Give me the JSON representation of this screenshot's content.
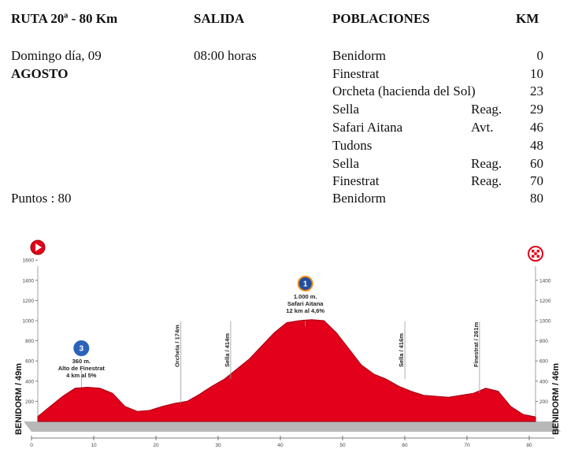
{
  "header": {
    "ruta": "RUTA 20ª - 80 Km",
    "salida": "SALIDA",
    "poblaciones": "POBLACIONES",
    "km": "KM"
  },
  "info": {
    "date_line": "Domingo día, 09",
    "month": "AGOSTO",
    "time": "08:00 horas",
    "points": "Puntos : 80"
  },
  "towns": [
    {
      "name": "Benidorm",
      "tag": "",
      "km": "0"
    },
    {
      "name": "Finestrat",
      "tag": "",
      "km": "10"
    },
    {
      "name": "Orcheta (hacienda del Sol)",
      "tag": "",
      "km": "23"
    },
    {
      "name": "Sella",
      "tag": "Reag.",
      "km": "29"
    },
    {
      "name": "Safari Aitana",
      "tag": "Avt.",
      "km": "46"
    },
    {
      "name": "Tudons",
      "tag": "",
      "km": "48"
    },
    {
      "name": "Sella",
      "tag": "Reag.",
      "km": "60"
    },
    {
      "name": "Finestrat",
      "tag": "Reag.",
      "km": "70"
    },
    {
      "name": "Benidorm",
      "tag": "",
      "km": "80"
    }
  ],
  "profile": {
    "start_label": "BENIDORM / 49m",
    "end_label": "BENIDORM / 46m",
    "start_icon": "start-flag-icon",
    "finish_icon": "checkered-flag-icon",
    "alt_ticks_left": [
      "200",
      "400",
      "600",
      "800",
      "1000",
      "1200",
      "1400",
      "1600"
    ],
    "alt_ticks_right": [
      "200",
      "400",
      "600",
      "800",
      "1000",
      "1200",
      "1400"
    ],
    "km_ticks": [
      "0",
      "10",
      "20",
      "30",
      "40",
      "50",
      "60",
      "70",
      "80"
    ],
    "accent": "#e2001a",
    "elevation_km": [
      0,
      2,
      4,
      6,
      8,
      10,
      12,
      14,
      16,
      18,
      20,
      22,
      24,
      26,
      28,
      30,
      32,
      34,
      36,
      38,
      40,
      42,
      44,
      46,
      48,
      50,
      52,
      54,
      56,
      58,
      60,
      62,
      64,
      66,
      68,
      70,
      72,
      74,
      76,
      78,
      80
    ],
    "elevation_m": [
      49,
      150,
      250,
      330,
      340,
      330,
      280,
      150,
      100,
      110,
      150,
      180,
      200,
      270,
      350,
      420,
      520,
      620,
      750,
      880,
      980,
      1000,
      1010,
      1000,
      880,
      720,
      560,
      470,
      420,
      350,
      300,
      260,
      250,
      240,
      260,
      280,
      330,
      300,
      150,
      70,
      46
    ],
    "markers": [
      {
        "km": 7,
        "alt": 340,
        "label": "",
        "icon": "cat-3-climb-icon",
        "badge": "3",
        "lines": [
          "360 m.",
          "Alto de Finestrat",
          "4 km al 5%"
        ]
      },
      {
        "km": 23,
        "alt": 180,
        "label": "Orcheta / 174m",
        "icon": "",
        "badge": "",
        "lines": []
      },
      {
        "km": 31,
        "alt": 420,
        "label": "Sella / 414m",
        "icon": "",
        "badge": "",
        "lines": []
      },
      {
        "km": 43,
        "alt": 1000,
        "label": "",
        "icon": "cat-1-climb-icon",
        "badge": "1",
        "lines": [
          "1.000 m.",
          "Safari Aitana",
          "12 km al 4,6%"
        ]
      },
      {
        "km": 59,
        "alt": 420,
        "label": "Sella / 416m",
        "icon": "",
        "badge": "",
        "lines": []
      },
      {
        "km": 71,
        "alt": 280,
        "label": "Finestrat / 261m",
        "icon": "",
        "badge": "",
        "lines": []
      }
    ]
  }
}
